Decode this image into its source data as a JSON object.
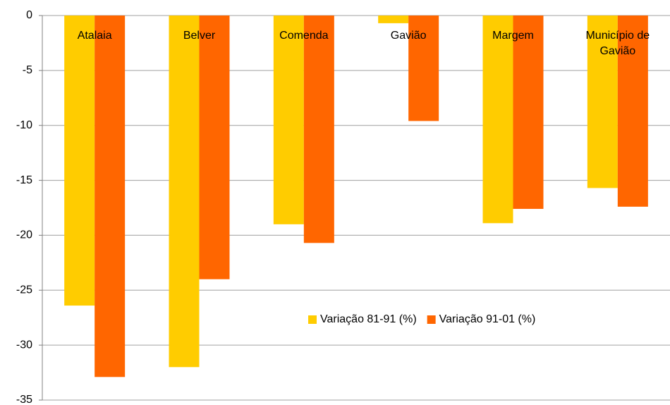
{
  "chart_data": {
    "type": "bar",
    "categories": [
      "Atalaia",
      "Belver",
      "Comenda",
      "Gavião",
      "Margem",
      "Município de Gavião"
    ],
    "series": [
      {
        "name": "Variação 81-91 (%)",
        "color": "#ffcc00",
        "values": [
          -26.4,
          -32,
          -19,
          -0.7,
          -18.9,
          -15.7
        ]
      },
      {
        "name": "Variação 91-01 (%)",
        "color": "#ff6600",
        "values": [
          -32.9,
          -24,
          -20.7,
          -9.6,
          -17.6,
          -17.4
        ]
      }
    ],
    "ylim": [
      -35,
      0
    ],
    "yticks": [
      0,
      -5,
      -10,
      -15,
      -20,
      -25,
      -30,
      -35
    ],
    "grid": true,
    "legend": "inside"
  }
}
